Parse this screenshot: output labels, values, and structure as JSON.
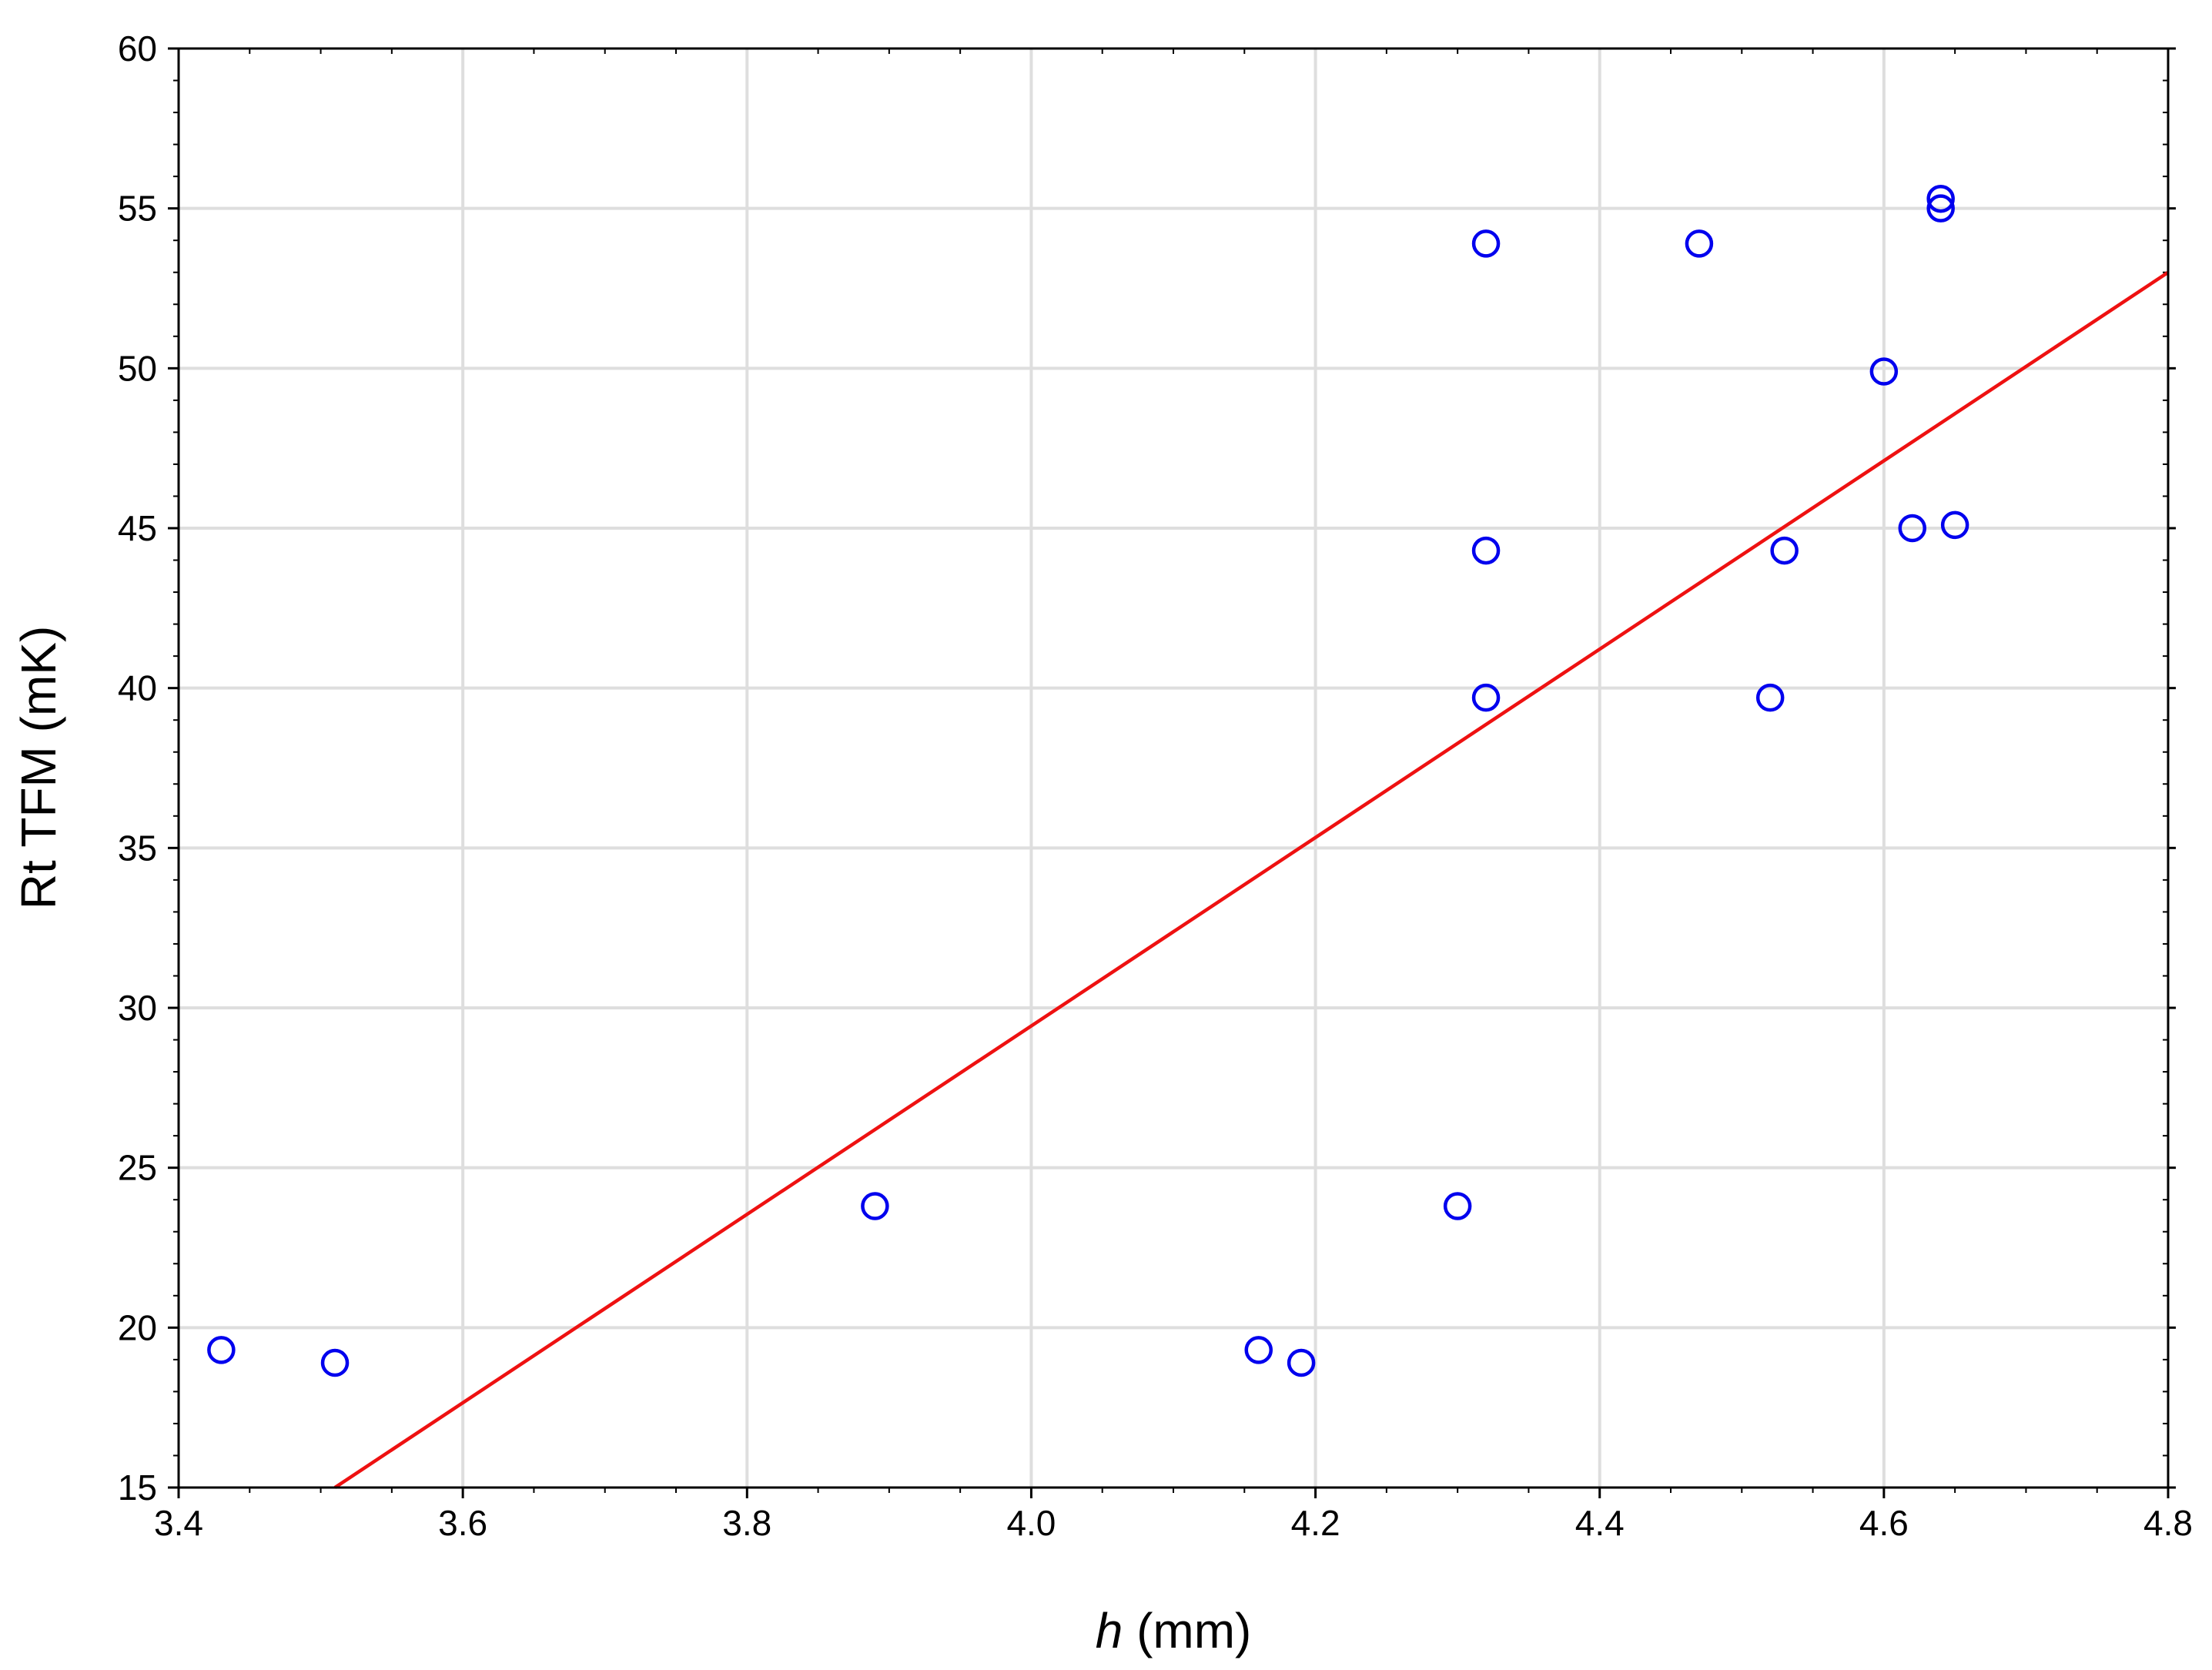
{
  "chart_data": {
    "type": "scatter",
    "title": "",
    "xlabel_var": "h",
    "xlabel_unit": " (mm)",
    "ylabel": "Rt TFM (mK)",
    "xlim": [
      3.4,
      4.8
    ],
    "ylim": [
      15,
      60
    ],
    "x_ticks": [
      "3.4",
      "3.6",
      "3.8",
      "4.0",
      "4.2",
      "4.4",
      "4.6",
      "4.8"
    ],
    "y_ticks": [
      "15",
      "20",
      "25",
      "30",
      "35",
      "40",
      "45",
      "50",
      "55",
      "60"
    ],
    "grid": true,
    "colors": {
      "points": "#0000ee",
      "fit": "#ee1111",
      "grid": "#dedede",
      "axis": "#000000"
    },
    "points": [
      {
        "x": 3.43,
        "y": 19.3
      },
      {
        "x": 3.51,
        "y": 18.9
      },
      {
        "x": 3.89,
        "y": 23.8
      },
      {
        "x": 4.16,
        "y": 19.3
      },
      {
        "x": 4.19,
        "y": 18.9
      },
      {
        "x": 4.3,
        "y": 23.8
      },
      {
        "x": 4.32,
        "y": 53.9
      },
      {
        "x": 4.32,
        "y": 44.3
      },
      {
        "x": 4.32,
        "y": 39.7
      },
      {
        "x": 4.47,
        "y": 53.9
      },
      {
        "x": 4.52,
        "y": 39.7
      },
      {
        "x": 4.53,
        "y": 44.3
      },
      {
        "x": 4.6,
        "y": 49.9
      },
      {
        "x": 4.62,
        "y": 45.0
      },
      {
        "x": 4.64,
        "y": 55.3
      },
      {
        "x": 4.64,
        "y": 55.0
      },
      {
        "x": 4.65,
        "y": 45.1
      }
    ],
    "fit_line": {
      "x": [
        3.51,
        4.8
      ],
      "y": [
        15.0,
        53.0
      ]
    }
  }
}
